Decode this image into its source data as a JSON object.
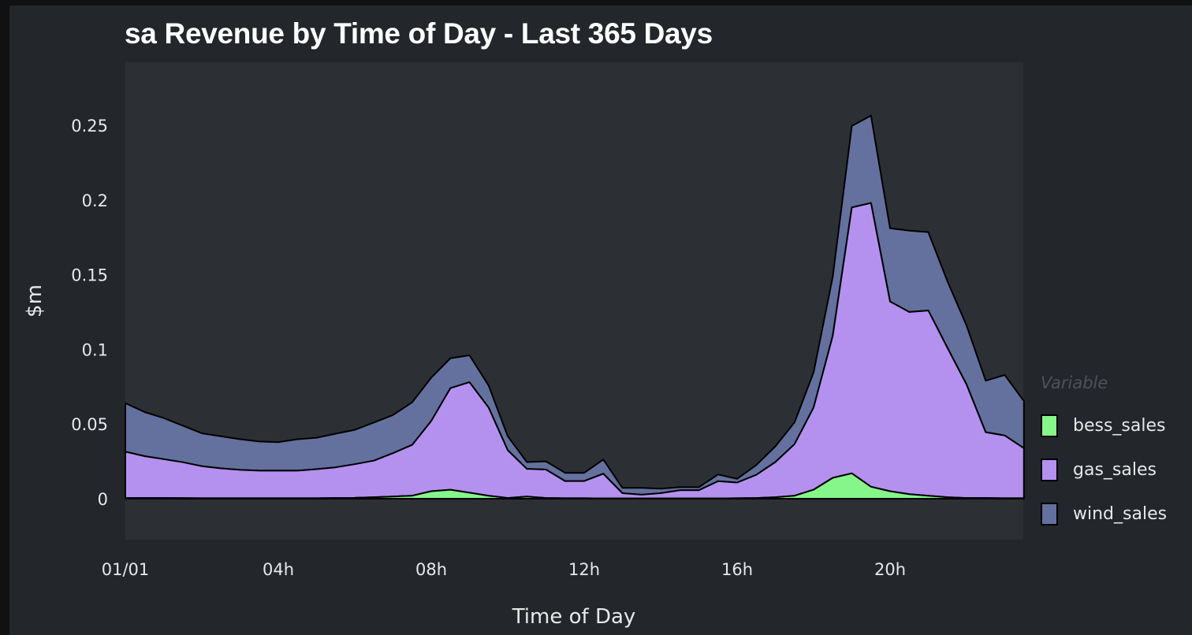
{
  "title": "sa Revenue by Time of Day - Last 365 Days",
  "colors": {
    "background": "#23262b",
    "plot_background": "#2c2f34",
    "bess_sales": "#86f58a",
    "gas_sales": "#b491ef",
    "wind_sales": "#64719e",
    "outline": "#000000"
  },
  "axes": {
    "xlabel": "Time of Day",
    "ylabel": "$m",
    "xticks": [
      "01/01",
      "04h",
      "08h",
      "12h",
      "16h",
      "20h"
    ],
    "yticks": [
      "0",
      "0.05",
      "0.1",
      "0.15",
      "0.2",
      "0.25"
    ]
  },
  "legend": {
    "title": "Variable",
    "items": [
      {
        "label": "bess_sales",
        "color": "#86f58a"
      },
      {
        "label": "gas_sales",
        "color": "#b491ef"
      },
      {
        "label": "wind_sales",
        "color": "#64719e"
      }
    ]
  },
  "chart_data": {
    "type": "area",
    "stacked": true,
    "title": "sa Revenue by Time of Day - Last 365 Days",
    "xlabel": "Time of Day",
    "ylabel": "$m",
    "ylim": [
      -0.027,
      0.292
    ],
    "x_tick_labels": [
      "01/01",
      "04h",
      "08h",
      "12h",
      "16h",
      "20h"
    ],
    "y_tick_labels": [
      "0",
      "0.05",
      "0.1",
      "0.15",
      "0.2",
      "0.25"
    ],
    "legend_title": "Variable",
    "legend_position": "right",
    "grid": false,
    "x": [
      0,
      0.5,
      1,
      1.5,
      2,
      2.5,
      3,
      3.5,
      4,
      4.5,
      5,
      5.5,
      6,
      6.5,
      7,
      7.5,
      8,
      8.5,
      9,
      9.5,
      10,
      10.5,
      11,
      11.5,
      12,
      12.5,
      13,
      13.5,
      14,
      14.5,
      15,
      15.5,
      16,
      16.5,
      17,
      17.5,
      18,
      18.5,
      19,
      19.5,
      20,
      20.5,
      21,
      21.5,
      22,
      22.5,
      23,
      23.5
    ],
    "series": [
      {
        "name": "bess_sales",
        "values": [
          0.0005,
          0.0005,
          0.0005,
          0.0004,
          0.0003,
          0.0003,
          0.0003,
          0.0003,
          0.0003,
          0.0003,
          0.0003,
          0.0005,
          0.0006,
          0.001,
          0.0015,
          0.002,
          0.005,
          0.006,
          0.004,
          0.002,
          0.0005,
          0.0015,
          0.0005,
          0.0003,
          0.0003,
          0.0002,
          0.0002,
          0.0002,
          0.0002,
          0.0002,
          0.0002,
          0.0002,
          0.0003,
          0.0005,
          0.001,
          0.002,
          0.006,
          0.014,
          0.017,
          0.008,
          0.005,
          0.003,
          0.002,
          0.001,
          0.0005,
          0.0005,
          0.0003,
          0.0003
        ]
      },
      {
        "name": "gas_sales",
        "values": [
          0.031,
          0.028,
          0.026,
          0.024,
          0.0215,
          0.02,
          0.019,
          0.0185,
          0.0185,
          0.0185,
          0.0195,
          0.0205,
          0.0225,
          0.0245,
          0.029,
          0.034,
          0.047,
          0.068,
          0.074,
          0.059,
          0.032,
          0.0185,
          0.019,
          0.0115,
          0.0115,
          0.0165,
          0.0035,
          0.0025,
          0.0035,
          0.0055,
          0.0055,
          0.0115,
          0.0105,
          0.0155,
          0.0235,
          0.0345,
          0.055,
          0.095,
          0.178,
          0.19,
          0.127,
          0.122,
          0.124,
          0.1,
          0.076,
          0.044,
          0.042,
          0.0335
        ]
      },
      {
        "name": "wind_sales",
        "values": [
          0.0325,
          0.0295,
          0.0275,
          0.0245,
          0.022,
          0.0215,
          0.0205,
          0.0195,
          0.019,
          0.021,
          0.021,
          0.0225,
          0.023,
          0.0255,
          0.0255,
          0.0285,
          0.029,
          0.02,
          0.018,
          0.0148,
          0.0093,
          0.0045,
          0.0055,
          0.0055,
          0.0055,
          0.0095,
          0.0035,
          0.0045,
          0.003,
          0.002,
          0.002,
          0.0045,
          0.0025,
          0.0065,
          0.0105,
          0.0145,
          0.0235,
          0.0395,
          0.0545,
          0.0585,
          0.049,
          0.0545,
          0.0525,
          0.0445,
          0.0395,
          0.0345,
          0.0405,
          0.0315
        ]
      }
    ]
  }
}
